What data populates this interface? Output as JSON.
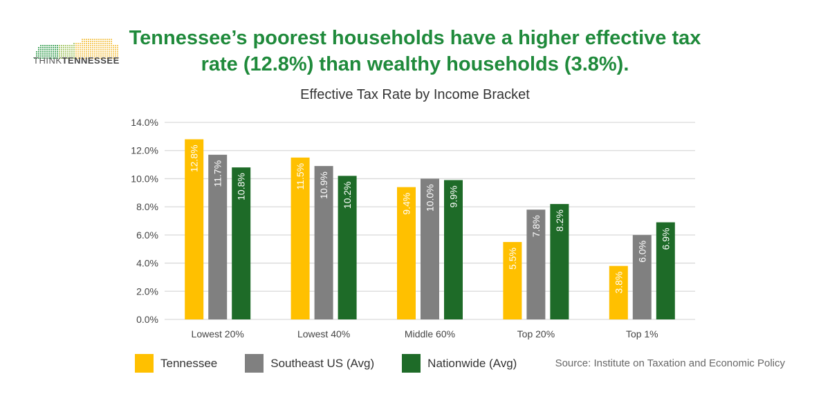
{
  "headline": "Tennessee’s poorest households have a higher effective tax rate (12.8%) than wealthy households (3.8%).",
  "logo": {
    "text_light": "THINK",
    "text_bold": "TENNESSEE"
  },
  "source": "Source: Institute on Taxation and Economic Policy",
  "chart_data": {
    "type": "bar",
    "title": "Effective Tax Rate by Income Bracket",
    "categories": [
      "Lowest 20%",
      "Lowest 40%",
      "Middle 60%",
      "Top 20%",
      "Top 1%"
    ],
    "series": [
      {
        "name": "Tennessee",
        "color": "#FFC000",
        "values": [
          12.8,
          11.5,
          9.4,
          5.5,
          3.8
        ],
        "labels": [
          "12.8%",
          "11.5%",
          "9.4%",
          "5.5%",
          "3.8%"
        ]
      },
      {
        "name": "Southeast US (Avg)",
        "color": "#808080",
        "values": [
          11.7,
          10.9,
          10.0,
          7.8,
          6.0
        ],
        "labels": [
          "11.7%",
          "10.9%",
          "10.0%",
          "7.8%",
          "6.0%"
        ]
      },
      {
        "name": "Nationwide (Avg)",
        "color": "#1E6B28",
        "values": [
          10.8,
          10.2,
          9.9,
          8.2,
          6.9
        ],
        "labels": [
          "10.8%",
          "10.2%",
          "9.9%",
          "8.2%",
          "6.9%"
        ]
      }
    ],
    "ylim": [
      0,
      14
    ],
    "yticks": [
      "0.0%",
      "2.0%",
      "4.0%",
      "6.0%",
      "8.0%",
      "10.0%",
      "12.0%",
      "14.0%"
    ],
    "grid": true,
    "legend": "bottom-left"
  }
}
